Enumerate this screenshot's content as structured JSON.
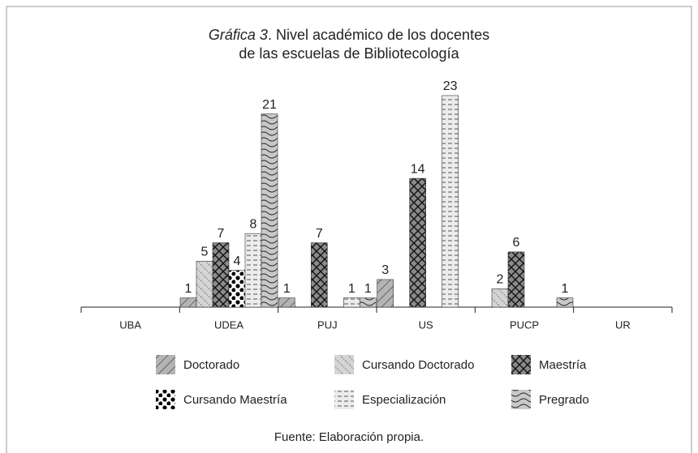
{
  "chart_data": {
    "type": "bar",
    "title": [
      "Gráfica 3",
      ". Nivel académico de los docentes",
      "de las escuelas de Bibliotecología"
    ],
    "categories": [
      "UBA",
      "UDEA",
      "PUJ",
      "US",
      "PUCP",
      "UR"
    ],
    "series": [
      {
        "name": "Doctorado",
        "color": "#b4b4b4",
        "values": [
          null,
          1,
          1,
          3,
          null,
          null
        ]
      },
      {
        "name": "Cursando Doctorado",
        "color": "#d4d4d4",
        "values": [
          null,
          5,
          null,
          null,
          2,
          null
        ]
      },
      {
        "name": "Maestría",
        "color": "#8a8a8a",
        "values": [
          null,
          7,
          7,
          14,
          6,
          null
        ]
      },
      {
        "name": "Cursando Maestría",
        "color": "#ffffff",
        "values": [
          null,
          4,
          null,
          null,
          null,
          null
        ]
      },
      {
        "name": "Especialización",
        "color": "#ececec",
        "values": [
          null,
          8,
          1,
          23,
          null,
          null
        ]
      },
      {
        "name": "Pregrado",
        "color": "#c8c8c8",
        "values": [
          null,
          21,
          1,
          null,
          1,
          null
        ]
      }
    ],
    "source": "Fuente: Elaboración propia."
  }
}
